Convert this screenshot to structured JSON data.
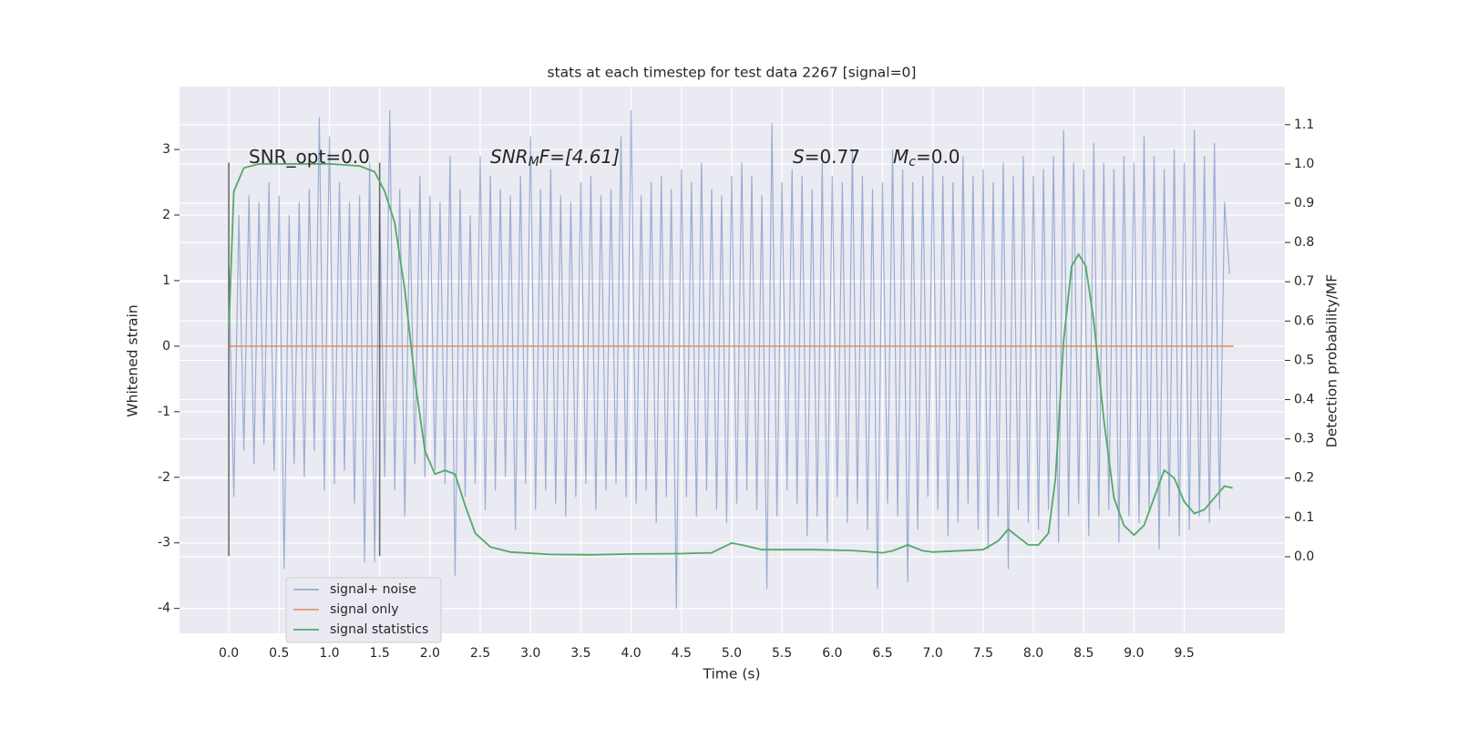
{
  "chart_data": {
    "type": "line",
    "title": "stats at each timestep for test data 2267 [signal=0]",
    "xlabel": "Time (s)",
    "ylabel": "Whitened strain",
    "y2label": "Detection probability/MF",
    "xlim": [
      -0.49,
      10.5
    ],
    "ylim": [
      -4.38,
      3.96
    ],
    "y2lim": [
      -0.195,
      1.197
    ],
    "xticks": [
      {
        "value": 0,
        "label": "0.0"
      },
      {
        "value": 0.5,
        "label": "0.5"
      },
      {
        "value": 1,
        "label": "1.0"
      },
      {
        "value": 1.5,
        "label": "1.5"
      },
      {
        "value": 2,
        "label": "2.0"
      },
      {
        "value": 2.5,
        "label": "2.5"
      },
      {
        "value": 3,
        "label": "3.0"
      },
      {
        "value": 3.5,
        "label": "3.5"
      },
      {
        "value": 4,
        "label": "4.0"
      },
      {
        "value": 4.5,
        "label": "4.5"
      },
      {
        "value": 5,
        "label": "5.0"
      },
      {
        "value": 5.5,
        "label": "5.5"
      },
      {
        "value": 6,
        "label": "6.0"
      },
      {
        "value": 6.5,
        "label": "6.5"
      },
      {
        "value": 7,
        "label": "7.0"
      },
      {
        "value": 7.5,
        "label": "7.5"
      },
      {
        "value": 8,
        "label": "8.0"
      },
      {
        "value": 8.5,
        "label": "8.5"
      },
      {
        "value": 9,
        "label": "9.0"
      },
      {
        "value": 9.5,
        "label": "9.5"
      }
    ],
    "yticks": [
      -4,
      -3,
      -2,
      -1,
      0,
      1,
      2,
      3
    ],
    "y2ticks": [
      {
        "value": 0,
        "label": "0.0"
      },
      {
        "value": 0.1,
        "label": "0.1"
      },
      {
        "value": 0.2,
        "label": "0.2"
      },
      {
        "value": 0.3,
        "label": "0.3"
      },
      {
        "value": 0.4,
        "label": "0.4"
      },
      {
        "value": 0.5,
        "label": "0.5"
      },
      {
        "value": 0.6,
        "label": "0.6"
      },
      {
        "value": 0.7,
        "label": "0.7"
      },
      {
        "value": 0.8,
        "label": "0.8"
      },
      {
        "value": 0.9,
        "label": "0.9"
      },
      {
        "value": 1,
        "label": "1.0"
      },
      {
        "value": 1.1,
        "label": "1.1"
      }
    ],
    "grid": true,
    "legend": "lower left",
    "series": [
      {
        "name": "signal+ noise",
        "color": "#4c72b0",
        "opacity": 0.5,
        "x": [
          0,
          0.05,
          0.1,
          0.15,
          0.2,
          0.25,
          0.3,
          0.35,
          0.4,
          0.45,
          0.5,
          0.55,
          0.6,
          0.65,
          0.7,
          0.75,
          0.8,
          0.85,
          0.9,
          0.95,
          1,
          1.05,
          1.1,
          1.15,
          1.2,
          1.25,
          1.3,
          1.35,
          1.4,
          1.45,
          1.5,
          1.55,
          1.6,
          1.65,
          1.7,
          1.75,
          1.8,
          1.85,
          1.9,
          1.95,
          2,
          2.05,
          2.1,
          2.15,
          2.2,
          2.25,
          2.3,
          2.35,
          2.4,
          2.45,
          2.5,
          2.55,
          2.6,
          2.65,
          2.7,
          2.75,
          2.8,
          2.85,
          2.9,
          2.95,
          3,
          3.05,
          3.1,
          3.15,
          3.2,
          3.25,
          3.3,
          3.35,
          3.4,
          3.45,
          3.5,
          3.55,
          3.6,
          3.65,
          3.7,
          3.75,
          3.8,
          3.85,
          3.9,
          3.95,
          4,
          4.05,
          4.1,
          4.15,
          4.2,
          4.25,
          4.3,
          4.35,
          4.4,
          4.45,
          4.5,
          4.55,
          4.6,
          4.65,
          4.7,
          4.75,
          4.8,
          4.85,
          4.9,
          4.95,
          5,
          5.05,
          5.1,
          5.15,
          5.2,
          5.25,
          5.3,
          5.35,
          5.4,
          5.45,
          5.5,
          5.55,
          5.6,
          5.65,
          5.7,
          5.75,
          5.8,
          5.85,
          5.9,
          5.95,
          6,
          6.05,
          6.1,
          6.15,
          6.2,
          6.25,
          6.3,
          6.35,
          6.4,
          6.45,
          6.5,
          6.55,
          6.6,
          6.65,
          6.7,
          6.75,
          6.8,
          6.85,
          6.9,
          6.95,
          7,
          7.05,
          7.1,
          7.15,
          7.2,
          7.25,
          7.3,
          7.35,
          7.4,
          7.45,
          7.5,
          7.55,
          7.6,
          7.65,
          7.7,
          7.75,
          7.8,
          7.85,
          7.9,
          7.95,
          8,
          8.05,
          8.1,
          8.15,
          8.2,
          8.25,
          8.3,
          8.35,
          8.4,
          8.45,
          8.5,
          8.55,
          8.6,
          8.65,
          8.7,
          8.75,
          8.8,
          8.85,
          8.9,
          8.95,
          9,
          9.05,
          9.1,
          9.15,
          9.2,
          9.25,
          9.3,
          9.35,
          9.4,
          9.45,
          9.5,
          9.55,
          9.6,
          9.65,
          9.7,
          9.75,
          9.8,
          9.85,
          9.9,
          9.95
        ],
        "values": [
          1.2,
          -2.3,
          2.0,
          -1.6,
          2.3,
          -1.8,
          2.2,
          -1.5,
          2.5,
          -1.9,
          2.3,
          -3.4,
          2.0,
          -1.8,
          2.2,
          -2.0,
          2.4,
          -1.6,
          3.5,
          -2.2,
          3.2,
          -2.1,
          2.5,
          -1.9,
          2.2,
          -2.4,
          2.3,
          -3.3,
          2.8,
          -3.3,
          2.2,
          -2.0,
          3.6,
          -2.2,
          2.4,
          -2.6,
          2.1,
          -1.8,
          2.6,
          -2.0,
          2.3,
          -1.9,
          2.2,
          -2.1,
          2.9,
          -3.5,
          2.4,
          -2.3,
          2.0,
          -2.1,
          2.9,
          -2.5,
          2.6,
          -2.2,
          2.4,
          -2.0,
          2.3,
          -2.8,
          2.6,
          -2.1,
          3.2,
          -2.5,
          2.4,
          -2.2,
          2.7,
          -2.4,
          2.3,
          -2.6,
          2.2,
          -2.3,
          2.5,
          -2.1,
          2.6,
          -2.5,
          2.3,
          -2.2,
          2.4,
          -2.1,
          3.2,
          -2.3,
          3.6,
          -2.4,
          2.3,
          -2.2,
          2.5,
          -2.7,
          2.6,
          -2.3,
          2.4,
          -4.0,
          2.7,
          -2.3,
          2.5,
          -2.6,
          2.8,
          -2.2,
          2.4,
          -2.5,
          2.3,
          -2.7,
          2.6,
          -2.4,
          2.8,
          -2.2,
          2.6,
          -2.5,
          2.3,
          -3.7,
          3.4,
          -2.6,
          2.5,
          -2.2,
          2.7,
          -2.4,
          2.6,
          -2.9,
          2.4,
          -2.6,
          2.8,
          -3.0,
          2.6,
          -2.3,
          2.5,
          -2.7,
          3.0,
          -2.4,
          2.6,
          -2.8,
          2.4,
          -3.7,
          2.5,
          -2.4,
          3.0,
          -2.6,
          2.7,
          -3.6,
          2.5,
          -2.8,
          2.6,
          -2.3,
          2.8,
          -2.5,
          2.6,
          -2.9,
          2.5,
          -2.7,
          2.9,
          -2.4,
          2.6,
          -2.8,
          2.7,
          -3.1,
          2.5,
          -2.6,
          2.8,
          -3.4,
          2.6,
          -2.5,
          2.9,
          -2.7,
          2.6,
          -2.8,
          2.7,
          -2.5,
          2.9,
          -3.0,
          3.3,
          -2.6,
          2.8,
          -2.4,
          2.7,
          -2.9,
          3.1,
          -2.6,
          2.8,
          -2.5,
          2.7,
          -3.0,
          2.9,
          -2.6,
          2.8,
          -2.7,
          3.2,
          -2.5,
          2.9,
          -3.1,
          2.7,
          -2.6,
          3.0,
          -2.9,
          2.8,
          -2.8,
          3.3,
          -2.6,
          2.9,
          -2.7,
          3.1,
          -2.5,
          2.2,
          1.1
        ]
      },
      {
        "name": "signal only",
        "color": "#dd8452",
        "opacity": 0.8,
        "x": [
          0,
          9.99
        ],
        "values": [
          0,
          0
        ]
      },
      {
        "name": "signal statistics",
        "color": "#55a868",
        "opacity": 1,
        "axis": "y2",
        "x": [
          0,
          0.05,
          0.15,
          0.3,
          0.5,
          1.0,
          1.3,
          1.45,
          1.55,
          1.65,
          1.75,
          1.85,
          1.95,
          2.05,
          2.15,
          2.25,
          2.35,
          2.45,
          2.6,
          2.8,
          3.2,
          3.6,
          4.0,
          4.5,
          4.8,
          5.0,
          5.1,
          5.3,
          5.8,
          6.2,
          6.5,
          6.6,
          6.75,
          6.9,
          7.0,
          7.5,
          7.65,
          7.75,
          7.85,
          7.95,
          8.05,
          8.15,
          8.22,
          8.3,
          8.38,
          8.45,
          8.52,
          8.6,
          8.7,
          8.8,
          8.9,
          9.0,
          9.1,
          9.2,
          9.3,
          9.4,
          9.5,
          9.6,
          9.7,
          9.8,
          9.9,
          9.98
        ],
        "values": [
          0.58,
          0.93,
          0.99,
          1.0,
          1.0,
          1.0,
          0.995,
          0.98,
          0.93,
          0.85,
          0.68,
          0.45,
          0.27,
          0.21,
          0.22,
          0.21,
          0.13,
          0.06,
          0.025,
          0.012,
          0.006,
          0.005,
          0.007,
          0.008,
          0.01,
          0.035,
          0.03,
          0.018,
          0.018,
          0.016,
          0.01,
          0.015,
          0.03,
          0.015,
          0.012,
          0.018,
          0.04,
          0.07,
          0.05,
          0.03,
          0.03,
          0.06,
          0.2,
          0.55,
          0.74,
          0.77,
          0.74,
          0.6,
          0.35,
          0.15,
          0.08,
          0.055,
          0.08,
          0.15,
          0.22,
          0.2,
          0.14,
          0.11,
          0.12,
          0.15,
          0.18,
          0.175
        ]
      }
    ],
    "vlines": {
      "x": [
        0,
        1.5
      ],
      "ymin": -3.2,
      "ymax": 2.8,
      "color": "#333333"
    },
    "annotations": [
      {
        "text": "SNR_opt=0.0"
      },
      {
        "math": "SNR",
        "sub": "M",
        "text": "F=[4.61]"
      },
      {
        "math": "S",
        "text": "=0.77"
      },
      {
        "math": "M",
        "sub": "c",
        "text": "=0.0"
      }
    ]
  }
}
